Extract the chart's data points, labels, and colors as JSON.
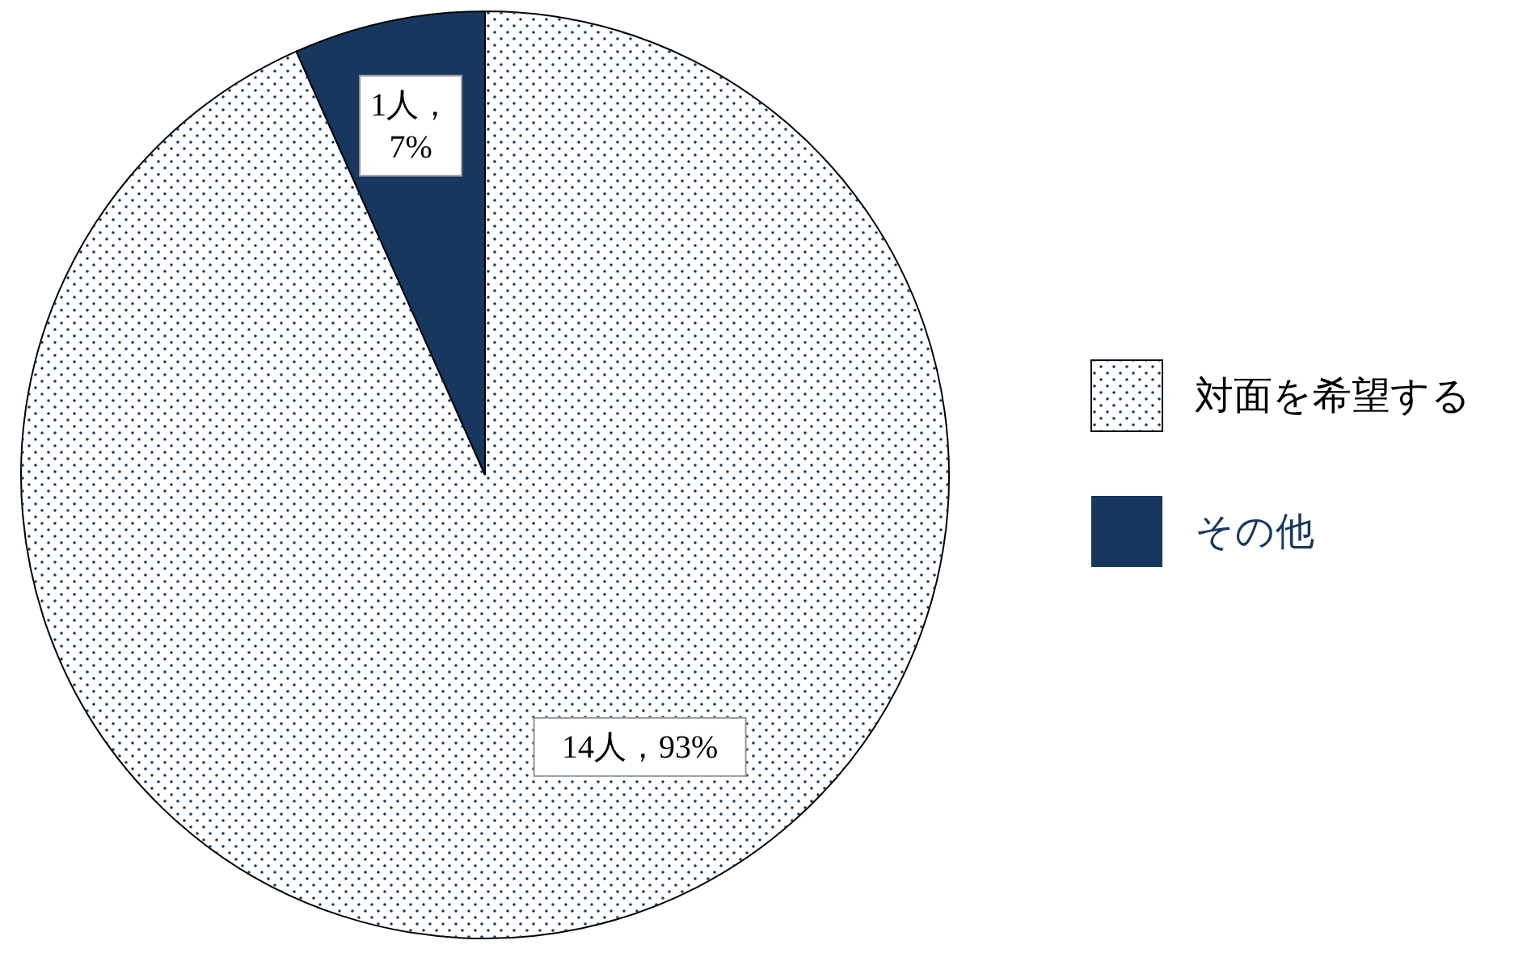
{
  "chart_data": {
    "type": "pie",
    "categories": [
      "対面を希望する",
      "その他"
    ],
    "values": [
      14,
      1
    ],
    "colors": [
      "#ffffff",
      "#17375e"
    ],
    "value_labels": [
      "14人，93%",
      "1人，7%"
    ],
    "legend": "right"
  }
}
